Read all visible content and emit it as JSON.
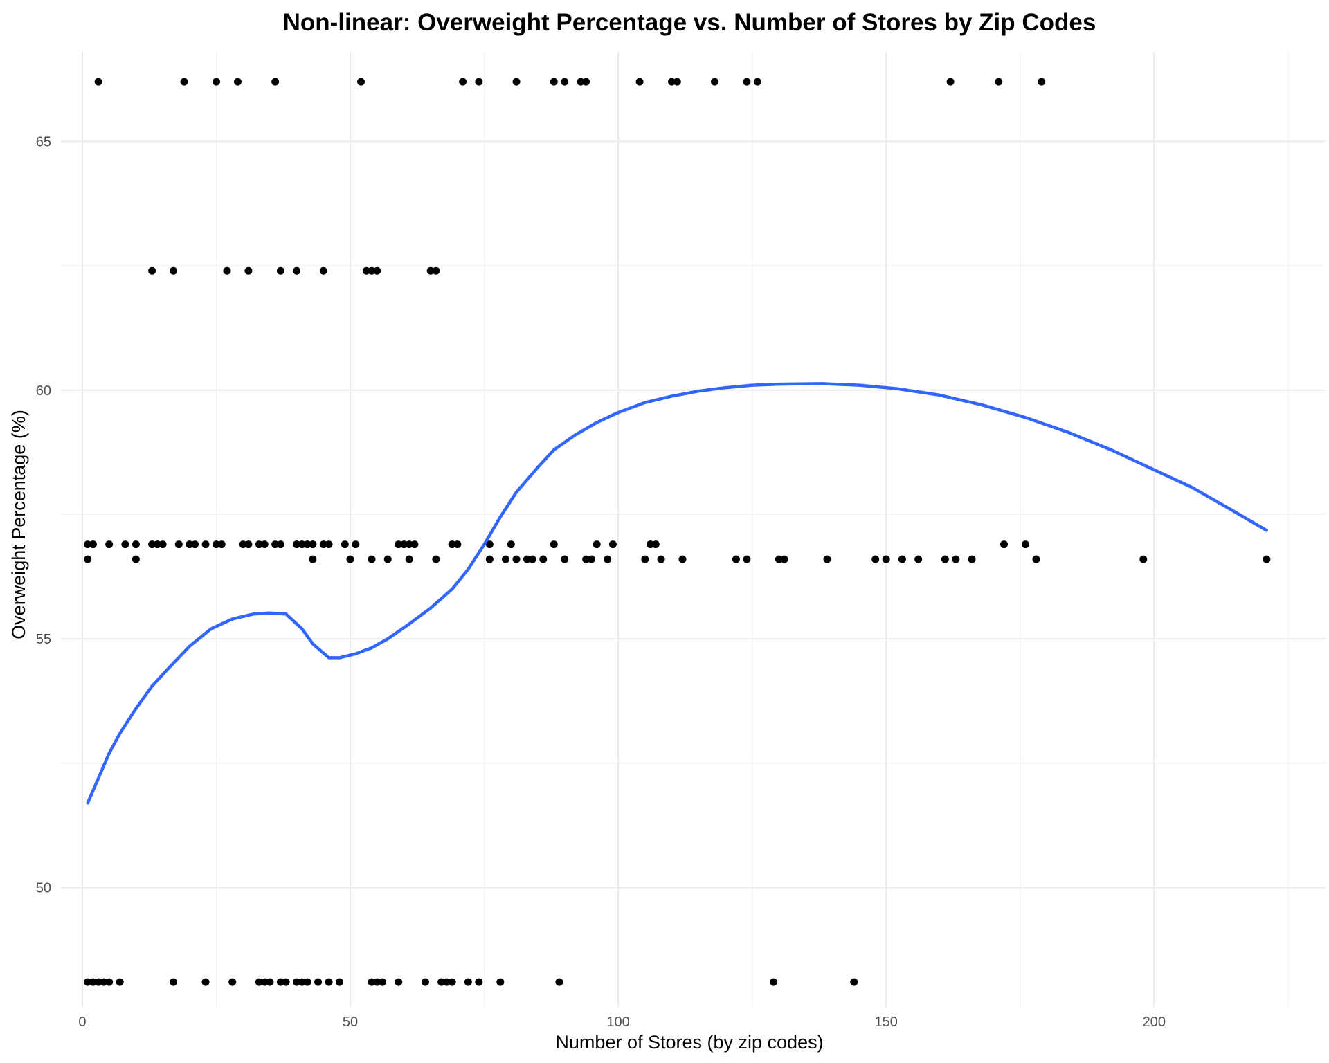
{
  "chart_data": {
    "type": "scatter",
    "title": "Non-linear: Overweight Percentage vs. Number of Stores by Zip Codes",
    "xlabel": "Number of Stores (by zip codes)",
    "ylabel": "Overweight Percentage (%)",
    "xlim": [
      -4,
      232
    ],
    "ylim": [
      47.6,
      66.8
    ],
    "x_ticks": [
      0,
      50,
      100,
      150,
      200
    ],
    "y_ticks": [
      50,
      55,
      60,
      65
    ],
    "grid": true,
    "colors": {
      "points": "#000000",
      "smooth_line": "#3366FF"
    },
    "series": [
      {
        "kind": "points",
        "points": [
          {
            "x": 3,
            "y": 66.2
          },
          {
            "x": 19,
            "y": 66.2
          },
          {
            "x": 25,
            "y": 66.2
          },
          {
            "x": 29,
            "y": 66.2
          },
          {
            "x": 36,
            "y": 66.2
          },
          {
            "x": 52,
            "y": 66.2
          },
          {
            "x": 71,
            "y": 66.2
          },
          {
            "x": 74,
            "y": 66.2
          },
          {
            "x": 81,
            "y": 66.2
          },
          {
            "x": 88,
            "y": 66.2
          },
          {
            "x": 90,
            "y": 66.2
          },
          {
            "x": 93,
            "y": 66.2
          },
          {
            "x": 94,
            "y": 66.2
          },
          {
            "x": 104,
            "y": 66.2
          },
          {
            "x": 110,
            "y": 66.2
          },
          {
            "x": 111,
            "y": 66.2
          },
          {
            "x": 118,
            "y": 66.2
          },
          {
            "x": 124,
            "y": 66.2
          },
          {
            "x": 126,
            "y": 66.2
          },
          {
            "x": 162,
            "y": 66.2
          },
          {
            "x": 171,
            "y": 66.2
          },
          {
            "x": 179,
            "y": 66.2
          },
          {
            "x": 13,
            "y": 62.4
          },
          {
            "x": 17,
            "y": 62.4
          },
          {
            "x": 27,
            "y": 62.4
          },
          {
            "x": 31,
            "y": 62.4
          },
          {
            "x": 37,
            "y": 62.4
          },
          {
            "x": 40,
            "y": 62.4
          },
          {
            "x": 45,
            "y": 62.4
          },
          {
            "x": 53,
            "y": 62.4
          },
          {
            "x": 54,
            "y": 62.4
          },
          {
            "x": 55,
            "y": 62.4
          },
          {
            "x": 65,
            "y": 62.4
          },
          {
            "x": 66,
            "y": 62.4
          },
          {
            "x": 1,
            "y": 56.9
          },
          {
            "x": 2,
            "y": 56.9
          },
          {
            "x": 5,
            "y": 56.9
          },
          {
            "x": 8,
            "y": 56.9
          },
          {
            "x": 10,
            "y": 56.9
          },
          {
            "x": 13,
            "y": 56.9
          },
          {
            "x": 14,
            "y": 56.9
          },
          {
            "x": 15,
            "y": 56.9
          },
          {
            "x": 18,
            "y": 56.9
          },
          {
            "x": 20,
            "y": 56.9
          },
          {
            "x": 21,
            "y": 56.9
          },
          {
            "x": 23,
            "y": 56.9
          },
          {
            "x": 25,
            "y": 56.9
          },
          {
            "x": 26,
            "y": 56.9
          },
          {
            "x": 30,
            "y": 56.9
          },
          {
            "x": 31,
            "y": 56.9
          },
          {
            "x": 33,
            "y": 56.9
          },
          {
            "x": 34,
            "y": 56.9
          },
          {
            "x": 36,
            "y": 56.9
          },
          {
            "x": 37,
            "y": 56.9
          },
          {
            "x": 40,
            "y": 56.9
          },
          {
            "x": 41,
            "y": 56.9
          },
          {
            "x": 42,
            "y": 56.9
          },
          {
            "x": 43,
            "y": 56.9
          },
          {
            "x": 45,
            "y": 56.9
          },
          {
            "x": 46,
            "y": 56.9
          },
          {
            "x": 49,
            "y": 56.9
          },
          {
            "x": 51,
            "y": 56.9
          },
          {
            "x": 59,
            "y": 56.9
          },
          {
            "x": 60,
            "y": 56.9
          },
          {
            "x": 61,
            "y": 56.9
          },
          {
            "x": 62,
            "y": 56.9
          },
          {
            "x": 69,
            "y": 56.9
          },
          {
            "x": 70,
            "y": 56.9
          },
          {
            "x": 76,
            "y": 56.9
          },
          {
            "x": 80,
            "y": 56.9
          },
          {
            "x": 88,
            "y": 56.9
          },
          {
            "x": 96,
            "y": 56.9
          },
          {
            "x": 99,
            "y": 56.9
          },
          {
            "x": 106,
            "y": 56.9
          },
          {
            "x": 107,
            "y": 56.9
          },
          {
            "x": 172,
            "y": 56.9
          },
          {
            "x": 176,
            "y": 56.9
          },
          {
            "x": 1,
            "y": 56.6
          },
          {
            "x": 10,
            "y": 56.6
          },
          {
            "x": 43,
            "y": 56.6
          },
          {
            "x": 50,
            "y": 56.6
          },
          {
            "x": 54,
            "y": 56.6
          },
          {
            "x": 57,
            "y": 56.6
          },
          {
            "x": 61,
            "y": 56.6
          },
          {
            "x": 66,
            "y": 56.6
          },
          {
            "x": 76,
            "y": 56.6
          },
          {
            "x": 79,
            "y": 56.6
          },
          {
            "x": 81,
            "y": 56.6
          },
          {
            "x": 83,
            "y": 56.6
          },
          {
            "x": 84,
            "y": 56.6
          },
          {
            "x": 86,
            "y": 56.6
          },
          {
            "x": 90,
            "y": 56.6
          },
          {
            "x": 94,
            "y": 56.6
          },
          {
            "x": 95,
            "y": 56.6
          },
          {
            "x": 98,
            "y": 56.6
          },
          {
            "x": 105,
            "y": 56.6
          },
          {
            "x": 108,
            "y": 56.6
          },
          {
            "x": 112,
            "y": 56.6
          },
          {
            "x": 122,
            "y": 56.6
          },
          {
            "x": 124,
            "y": 56.6
          },
          {
            "x": 130,
            "y": 56.6
          },
          {
            "x": 131,
            "y": 56.6
          },
          {
            "x": 139,
            "y": 56.6
          },
          {
            "x": 148,
            "y": 56.6
          },
          {
            "x": 150,
            "y": 56.6
          },
          {
            "x": 153,
            "y": 56.6
          },
          {
            "x": 156,
            "y": 56.6
          },
          {
            "x": 161,
            "y": 56.6
          },
          {
            "x": 163,
            "y": 56.6
          },
          {
            "x": 166,
            "y": 56.6
          },
          {
            "x": 178,
            "y": 56.6
          },
          {
            "x": 198,
            "y": 56.6
          },
          {
            "x": 221,
            "y": 56.6
          },
          {
            "x": 1,
            "y": 48.1
          },
          {
            "x": 2,
            "y": 48.1
          },
          {
            "x": 3,
            "y": 48.1
          },
          {
            "x": 4,
            "y": 48.1
          },
          {
            "x": 5,
            "y": 48.1
          },
          {
            "x": 7,
            "y": 48.1
          },
          {
            "x": 17,
            "y": 48.1
          },
          {
            "x": 23,
            "y": 48.1
          },
          {
            "x": 28,
            "y": 48.1
          },
          {
            "x": 33,
            "y": 48.1
          },
          {
            "x": 34,
            "y": 48.1
          },
          {
            "x": 35,
            "y": 48.1
          },
          {
            "x": 37,
            "y": 48.1
          },
          {
            "x": 38,
            "y": 48.1
          },
          {
            "x": 40,
            "y": 48.1
          },
          {
            "x": 41,
            "y": 48.1
          },
          {
            "x": 42,
            "y": 48.1
          },
          {
            "x": 44,
            "y": 48.1
          },
          {
            "x": 46,
            "y": 48.1
          },
          {
            "x": 48,
            "y": 48.1
          },
          {
            "x": 54,
            "y": 48.1
          },
          {
            "x": 55,
            "y": 48.1
          },
          {
            "x": 56,
            "y": 48.1
          },
          {
            "x": 59,
            "y": 48.1
          },
          {
            "x": 64,
            "y": 48.1
          },
          {
            "x": 67,
            "y": 48.1
          },
          {
            "x": 68,
            "y": 48.1
          },
          {
            "x": 69,
            "y": 48.1
          },
          {
            "x": 72,
            "y": 48.1
          },
          {
            "x": 74,
            "y": 48.1
          },
          {
            "x": 78,
            "y": 48.1
          },
          {
            "x": 89,
            "y": 48.1
          },
          {
            "x": 129,
            "y": 48.1
          },
          {
            "x": 144,
            "y": 48.1
          }
        ]
      },
      {
        "kind": "smooth",
        "points": [
          {
            "x": 1,
            "y": 51.7
          },
          {
            "x": 3,
            "y": 52.2
          },
          {
            "x": 5,
            "y": 52.7
          },
          {
            "x": 7,
            "y": 53.1
          },
          {
            "x": 10,
            "y": 53.6
          },
          {
            "x": 13,
            "y": 54.05
          },
          {
            "x": 16,
            "y": 54.4
          },
          {
            "x": 20,
            "y": 54.85
          },
          {
            "x": 24,
            "y": 55.2
          },
          {
            "x": 28,
            "y": 55.4
          },
          {
            "x": 32,
            "y": 55.5
          },
          {
            "x": 35,
            "y": 55.52
          },
          {
            "x": 38,
            "y": 55.5
          },
          {
            "x": 41,
            "y": 55.2
          },
          {
            "x": 43,
            "y": 54.9
          },
          {
            "x": 46,
            "y": 54.62
          },
          {
            "x": 48,
            "y": 54.62
          },
          {
            "x": 51,
            "y": 54.7
          },
          {
            "x": 54,
            "y": 54.82
          },
          {
            "x": 57,
            "y": 55.0
          },
          {
            "x": 61,
            "y": 55.3
          },
          {
            "x": 65,
            "y": 55.62
          },
          {
            "x": 69,
            "y": 56.0
          },
          {
            "x": 72,
            "y": 56.4
          },
          {
            "x": 75,
            "y": 56.9
          },
          {
            "x": 78,
            "y": 57.45
          },
          {
            "x": 81,
            "y": 57.95
          },
          {
            "x": 85,
            "y": 58.45
          },
          {
            "x": 88,
            "y": 58.8
          },
          {
            "x": 92,
            "y": 59.1
          },
          {
            "x": 96,
            "y": 59.35
          },
          {
            "x": 100,
            "y": 59.55
          },
          {
            "x": 105,
            "y": 59.75
          },
          {
            "x": 110,
            "y": 59.88
          },
          {
            "x": 115,
            "y": 59.98
          },
          {
            "x": 120,
            "y": 60.05
          },
          {
            "x": 125,
            "y": 60.1
          },
          {
            "x": 130,
            "y": 60.12
          },
          {
            "x": 138,
            "y": 60.13
          },
          {
            "x": 145,
            "y": 60.1
          },
          {
            "x": 152,
            "y": 60.03
          },
          {
            "x": 160,
            "y": 59.9
          },
          {
            "x": 168,
            "y": 59.7
          },
          {
            "x": 176,
            "y": 59.45
          },
          {
            "x": 184,
            "y": 59.15
          },
          {
            "x": 192,
            "y": 58.8
          },
          {
            "x": 200,
            "y": 58.4
          },
          {
            "x": 207,
            "y": 58.05
          },
          {
            "x": 214,
            "y": 57.62
          },
          {
            "x": 221,
            "y": 57.18
          }
        ]
      }
    ]
  }
}
